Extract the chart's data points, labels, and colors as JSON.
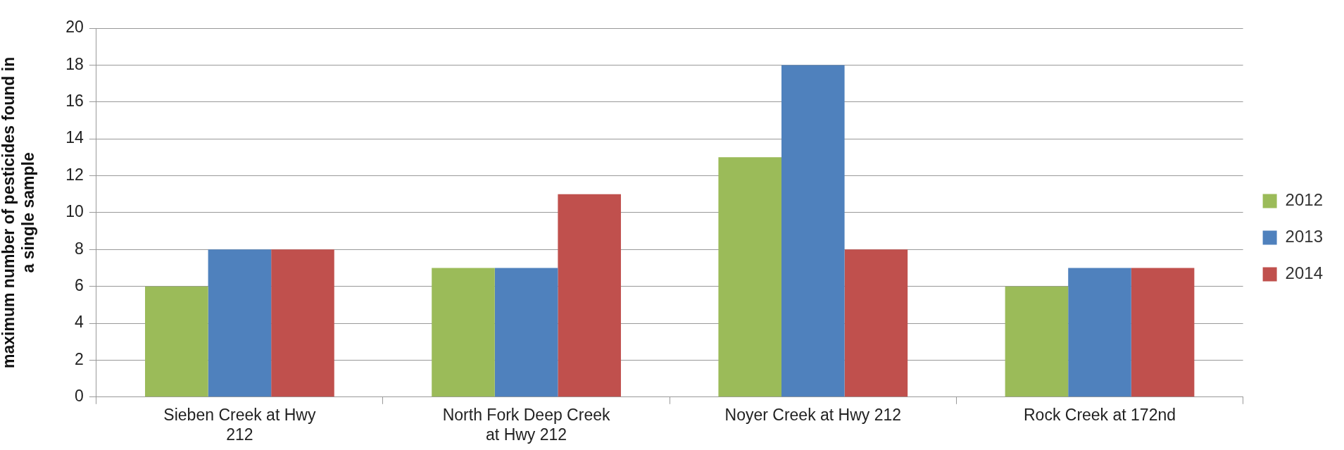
{
  "chart_data": {
    "type": "bar",
    "ylabel": "maximum number of pesticides found in a single sample",
    "categories": [
      "Sieben Creek at Hwy 212",
      "North Fork Deep Creek at Hwy 212",
      "Noyer Creek at Hwy 212",
      "Rock Creek at 172nd"
    ],
    "series": [
      {
        "name": "2012",
        "color": "#9bbb59",
        "values": [
          6,
          7,
          13,
          6
        ]
      },
      {
        "name": "2013",
        "color": "#4f81bd",
        "values": [
          8,
          7,
          18,
          7
        ]
      },
      {
        "name": "2014",
        "color": "#c0504d",
        "values": [
          8,
          11,
          8,
          7
        ]
      }
    ],
    "ylim": [
      0,
      20
    ],
    "yticks": [
      0,
      2,
      4,
      6,
      8,
      10,
      12,
      14,
      16,
      18,
      20
    ],
    "grid": "y",
    "legend": "right"
  }
}
